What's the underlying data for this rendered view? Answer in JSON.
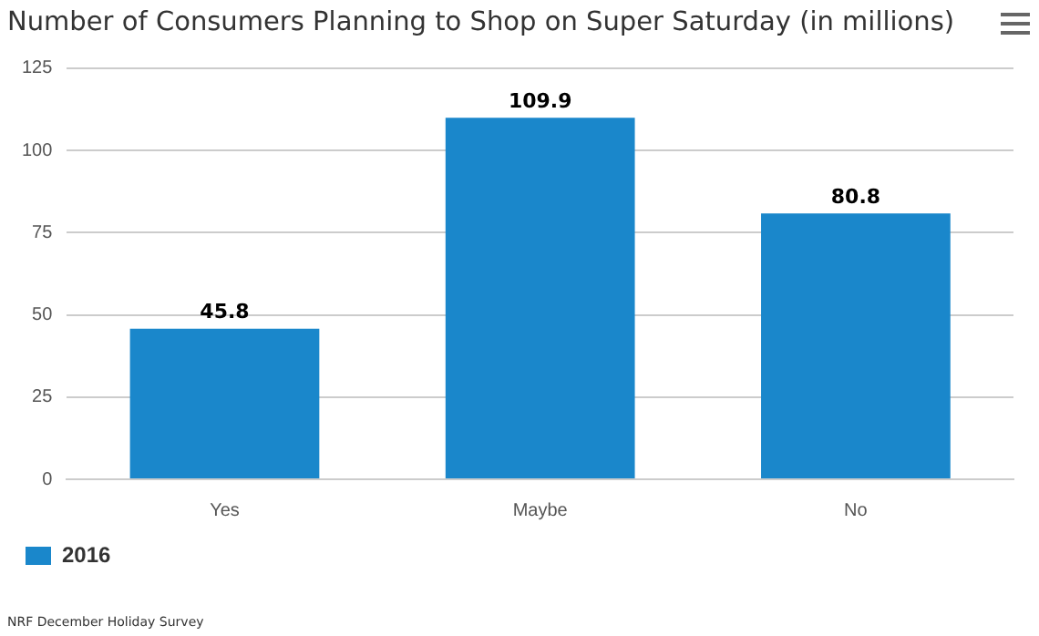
{
  "chart_data": {
    "type": "bar",
    "title": "Number of Consumers Planning to Shop on Super Saturday (in millions)",
    "categories": [
      "Yes",
      "Maybe",
      "No"
    ],
    "series": [
      {
        "name": "2016",
        "color": "#1a87cb",
        "values": [
          45.8,
          109.9,
          80.8
        ]
      }
    ],
    "ylim": [
      0,
      125
    ],
    "yticks": [
      0,
      25,
      50,
      75,
      100,
      125
    ],
    "grid": "y",
    "legend": "bottom left",
    "data_labels": true,
    "annotations": [
      "NRF December Holiday Survey"
    ]
  }
}
